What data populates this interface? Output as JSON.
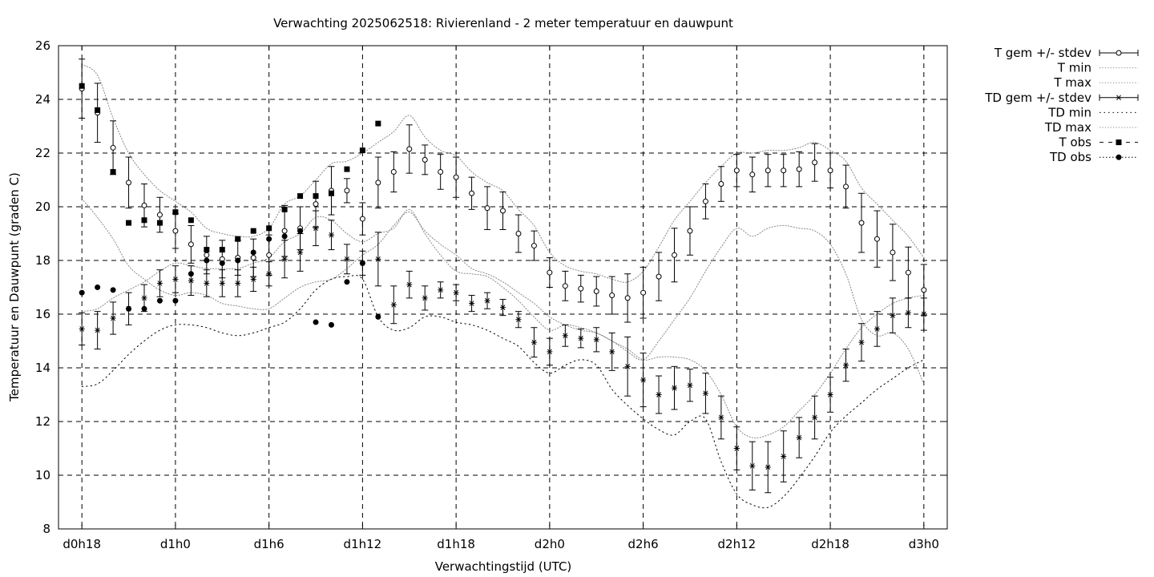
{
  "chart_data": {
    "type": "line",
    "title": "Verwachting 2025062518: Rivierenland - 2 meter temperatuur en dauwpunt",
    "xlabel": "Verwachtingstijd (UTC)",
    "ylabel": "Temperatuur en Dauwpunt (graden C)",
    "x_unit": "hours since d0h18",
    "xlim": [
      -1.5,
      55.5
    ],
    "ylim": [
      8,
      26
    ],
    "x_ticks": [
      {
        "x": 0,
        "label": "d0h18"
      },
      {
        "x": 6,
        "label": "d1h0"
      },
      {
        "x": 12,
        "label": "d1h6"
      },
      {
        "x": 18,
        "label": "d1h12"
      },
      {
        "x": 24,
        "label": "d1h18"
      },
      {
        "x": 30,
        "label": "d2h0"
      },
      {
        "x": 36,
        "label": "d2h6"
      },
      {
        "x": 42,
        "label": "d2h12"
      },
      {
        "x": 48,
        "label": "d2h18"
      },
      {
        "x": 54,
        "label": "d3h0"
      }
    ],
    "y_ticks": [
      8,
      10,
      12,
      14,
      16,
      18,
      20,
      22,
      24,
      26
    ],
    "grid": true,
    "legend_position": "outside-top-right",
    "legend": [
      "T gem +/- stdev",
      "T min",
      "T max",
      "TD gem +/- stdev",
      "TD min",
      "TD max",
      "T obs",
      "TD obs"
    ],
    "series": [
      {
        "name": "T gem +/- stdev",
        "style": "errorbar-open-circle",
        "x": [
          0,
          1,
          2,
          3,
          4,
          5,
          6,
          7,
          8,
          9,
          10,
          11,
          12,
          13,
          14,
          15,
          16,
          17,
          18,
          19,
          20,
          21,
          22,
          23,
          24,
          25,
          26,
          27,
          28,
          29,
          30,
          31,
          32,
          33,
          34,
          35,
          36,
          37,
          38,
          39,
          40,
          41,
          42,
          43,
          44,
          45,
          46,
          47,
          48,
          49,
          50,
          51,
          52,
          53,
          54
        ],
        "mean": [
          24.4,
          23.5,
          22.2,
          20.9,
          20.05,
          19.7,
          19.1,
          18.6,
          18.2,
          18.05,
          18.1,
          18.1,
          18.2,
          19.1,
          19.2,
          20.1,
          20.6,
          20.6,
          19.55,
          20.9,
          21.3,
          22.15,
          21.75,
          21.3,
          21.1,
          20.5,
          19.95,
          19.85,
          19.0,
          18.55,
          17.55,
          17.05,
          16.95,
          16.85,
          16.7,
          16.6,
          16.8,
          17.4,
          18.2,
          19.1,
          20.2,
          20.85,
          21.35,
          21.2,
          21.35,
          21.35,
          21.4,
          21.65,
          21.35,
          20.75,
          19.4,
          18.8,
          18.3,
          17.55,
          16.9
        ],
        "stdev": [
          1.1,
          1.1,
          1.0,
          0.95,
          0.8,
          0.65,
          0.65,
          0.7,
          0.7,
          0.7,
          0.65,
          0.7,
          0.75,
          0.95,
          0.8,
          0.85,
          0.9,
          0.45,
          0.6,
          0.95,
          0.75,
          0.9,
          0.55,
          0.65,
          0.75,
          0.6,
          0.8,
          0.7,
          0.7,
          0.55,
          0.55,
          0.55,
          0.5,
          0.55,
          0.7,
          0.9,
          0.95,
          0.9,
          1.0,
          0.9,
          0.65,
          0.65,
          0.6,
          0.65,
          0.6,
          0.6,
          0.65,
          0.7,
          0.65,
          0.8,
          1.1,
          1.05,
          1.05,
          0.95,
          0.95
        ]
      },
      {
        "name": "T min",
        "style": "dotted",
        "x": [
          0,
          1,
          2,
          3,
          4,
          5,
          6,
          7,
          8,
          9,
          10,
          11,
          12,
          13,
          14,
          15,
          16,
          17,
          18,
          19,
          20,
          21,
          22,
          23,
          24,
          25,
          26,
          27,
          28,
          29,
          30,
          31,
          32,
          33,
          34,
          35,
          36,
          37,
          38,
          39,
          40,
          41,
          42,
          43,
          44,
          45,
          46,
          47,
          48,
          49,
          50,
          51,
          52,
          53,
          54
        ],
        "y": [
          20.3,
          19.6,
          18.8,
          17.8,
          17.3,
          16.9,
          16.7,
          16.8,
          16.7,
          16.4,
          16.3,
          16.2,
          16.2,
          16.6,
          17.0,
          17.2,
          17.3,
          17.7,
          18.2,
          18.6,
          19.3,
          19.8,
          19.1,
          18.6,
          18.2,
          17.7,
          17.5,
          17.2,
          16.8,
          16.4,
          15.9,
          15.6,
          15.4,
          15.3,
          15.0,
          14.6,
          14.3,
          15.0,
          15.8,
          16.6,
          17.6,
          18.5,
          19.2,
          18.9,
          19.2,
          19.3,
          19.2,
          19.1,
          18.6,
          17.5,
          15.8,
          15.2,
          15.3,
          14.7,
          13.4
        ]
      },
      {
        "name": "T max",
        "style": "dotted",
        "x": [
          0,
          1,
          2,
          3,
          4,
          5,
          6,
          7,
          8,
          9,
          10,
          11,
          12,
          13,
          14,
          15,
          16,
          17,
          18,
          19,
          20,
          21,
          22,
          23,
          24,
          25,
          26,
          27,
          28,
          29,
          30,
          31,
          32,
          33,
          34,
          35,
          36,
          37,
          38,
          39,
          40,
          41,
          42,
          43,
          44,
          45,
          46,
          47,
          48,
          49,
          50,
          51,
          52,
          53,
          54
        ],
        "y": [
          25.3,
          24.9,
          23.3,
          22.0,
          21.2,
          20.6,
          20.2,
          19.8,
          19.2,
          19.0,
          18.9,
          18.9,
          19.2,
          20.1,
          20.4,
          21.0,
          21.6,
          21.7,
          22.0,
          22.4,
          22.8,
          23.4,
          22.6,
          22.1,
          21.9,
          21.3,
          20.9,
          20.6,
          19.9,
          19.3,
          18.3,
          17.8,
          17.6,
          17.5,
          17.3,
          17.2,
          17.6,
          18.5,
          19.5,
          20.2,
          20.9,
          21.5,
          22.0,
          22.0,
          22.1,
          22.1,
          22.2,
          22.4,
          22.1,
          21.7,
          20.7,
          20.1,
          19.5,
          18.9,
          18.1
        ]
      },
      {
        "name": "TD gem +/- stdev",
        "style": "errorbar-star",
        "x": [
          0,
          1,
          2,
          3,
          4,
          5,
          6,
          7,
          8,
          9,
          10,
          11,
          12,
          13,
          14,
          15,
          16,
          17,
          18,
          19,
          20,
          21,
          22,
          23,
          24,
          25,
          26,
          27,
          28,
          29,
          30,
          31,
          32,
          33,
          34,
          35,
          36,
          37,
          38,
          39,
          40,
          41,
          42,
          43,
          44,
          45,
          46,
          47,
          48,
          49,
          50,
          51,
          52,
          53,
          54
        ],
        "mean": [
          15.45,
          15.4,
          15.85,
          16.2,
          16.6,
          17.15,
          17.3,
          17.25,
          17.15,
          17.15,
          17.15,
          17.3,
          17.5,
          18.05,
          18.3,
          19.2,
          18.95,
          18.05,
          17.9,
          18.05,
          16.35,
          17.1,
          16.6,
          16.9,
          16.8,
          16.4,
          16.5,
          16.25,
          15.8,
          14.95,
          14.6,
          15.2,
          15.1,
          15.05,
          14.6,
          14.05,
          13.55,
          13.0,
          13.25,
          13.35,
          13.05,
          12.15,
          11.0,
          10.35,
          10.3,
          10.7,
          11.4,
          12.15,
          13.0,
          14.1,
          14.95,
          15.45,
          15.95,
          16.05,
          16.0
        ],
        "stdev": [
          0.6,
          0.7,
          0.6,
          0.6,
          0.5,
          0.5,
          0.5,
          0.55,
          0.5,
          0.5,
          0.5,
          0.45,
          0.45,
          0.7,
          0.7,
          0.65,
          0.55,
          0.55,
          0.45,
          1.0,
          0.7,
          0.5,
          0.45,
          0.3,
          0.3,
          0.3,
          0.3,
          0.3,
          0.3,
          0.55,
          0.5,
          0.4,
          0.35,
          0.45,
          0.7,
          1.1,
          1.0,
          0.7,
          0.8,
          0.6,
          0.75,
          0.8,
          0.8,
          0.9,
          0.95,
          0.95,
          0.75,
          0.8,
          0.65,
          0.6,
          0.7,
          0.65,
          0.65,
          0.55,
          0.6
        ]
      },
      {
        "name": "TD min",
        "style": "dotted-sparse",
        "x": [
          0,
          1,
          2,
          3,
          4,
          5,
          6,
          7,
          8,
          9,
          10,
          11,
          12,
          13,
          14,
          15,
          16,
          17,
          18,
          19,
          20,
          21,
          22,
          23,
          24,
          25,
          26,
          27,
          28,
          29,
          30,
          31,
          32,
          33,
          34,
          35,
          36,
          37,
          38,
          39,
          40,
          41,
          42,
          43,
          44,
          45,
          46,
          47,
          48,
          49,
          50,
          51,
          52,
          53,
          54
        ],
        "y": [
          13.3,
          13.4,
          13.9,
          14.5,
          15.0,
          15.4,
          15.6,
          15.6,
          15.5,
          15.3,
          15.2,
          15.3,
          15.5,
          15.7,
          16.2,
          16.9,
          17.3,
          17.4,
          17.3,
          15.9,
          15.4,
          15.5,
          15.9,
          15.9,
          15.7,
          15.6,
          15.4,
          15.1,
          14.8,
          14.2,
          13.8,
          14.1,
          14.3,
          14.1,
          13.2,
          12.6,
          12.1,
          11.7,
          11.5,
          12.0,
          12.1,
          10.5,
          9.3,
          8.9,
          8.8,
          9.2,
          9.9,
          10.7,
          11.6,
          12.2,
          12.7,
          13.2,
          13.6,
          14.0,
          14.3
        ]
      },
      {
        "name": "TD max",
        "style": "dotted",
        "x": [
          0,
          1,
          2,
          3,
          4,
          5,
          6,
          7,
          8,
          9,
          10,
          11,
          12,
          13,
          14,
          15,
          16,
          17,
          18,
          19,
          20,
          21,
          22,
          23,
          24,
          25,
          26,
          27,
          28,
          29,
          30,
          31,
          32,
          33,
          34,
          35,
          36,
          37,
          38,
          39,
          40,
          41,
          42,
          43,
          44,
          45,
          46,
          47,
          48,
          49,
          50,
          51,
          52,
          53,
          54
        ],
        "y": [
          16.1,
          16.2,
          16.6,
          16.9,
          17.2,
          17.6,
          17.9,
          17.8,
          17.7,
          17.7,
          17.7,
          17.9,
          18.1,
          18.7,
          19.0,
          19.6,
          19.5,
          19.0,
          18.7,
          19.0,
          19.2,
          19.9,
          19.0,
          18.2,
          17.6,
          17.5,
          17.4,
          17.0,
          16.5,
          15.9,
          15.4,
          15.6,
          15.5,
          15.3,
          15.0,
          14.7,
          14.3,
          14.4,
          14.4,
          14.3,
          13.9,
          13.0,
          11.8,
          11.4,
          11.5,
          11.8,
          12.4,
          13.0,
          13.8,
          14.7,
          15.5,
          16.0,
          16.4,
          16.6,
          16.7
        ]
      },
      {
        "name": "T obs",
        "style": "filled-square",
        "x": [
          0,
          1,
          2,
          3,
          4,
          5,
          6,
          7,
          8,
          9,
          10,
          11,
          12,
          13,
          14,
          15,
          16,
          17,
          18,
          19
        ],
        "y": [
          24.5,
          23.6,
          21.3,
          19.4,
          19.5,
          19.4,
          19.8,
          19.5,
          18.4,
          18.4,
          18.8,
          19.1,
          19.2,
          19.9,
          20.4,
          20.4,
          20.5,
          21.4,
          22.1,
          23.1
        ]
      },
      {
        "name": "TD obs",
        "style": "filled-circle",
        "x": [
          0,
          1,
          2,
          3,
          4,
          5,
          6,
          7,
          8,
          9,
          10,
          11,
          12,
          13,
          14,
          15,
          16,
          17,
          18,
          19
        ],
        "y": [
          16.8,
          17.0,
          16.9,
          16.2,
          16.2,
          16.5,
          16.5,
          17.5,
          18.0,
          17.9,
          18.0,
          18.3,
          18.8,
          18.9,
          19.1,
          15.7,
          15.6,
          17.2,
          17.9,
          15.9
        ]
      }
    ]
  }
}
